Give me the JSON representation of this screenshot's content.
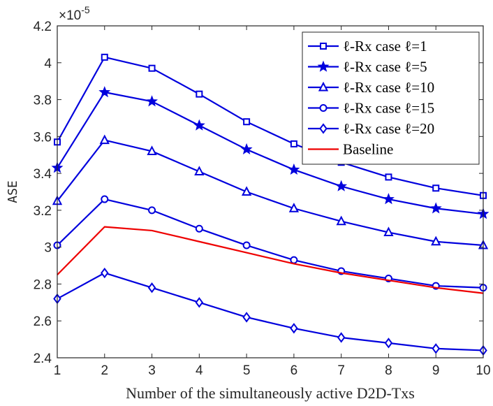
{
  "chart_data": {
    "type": "line",
    "xlabel": "Number of the simultaneously active D2D-Txs",
    "ylabel": "ASE",
    "y_multiplier": "×10",
    "y_multiplier_exp": "-5",
    "xlim": [
      1,
      10
    ],
    "ylim": [
      2.4,
      4.2
    ],
    "x": [
      1,
      2,
      3,
      4,
      5,
      6,
      7,
      8,
      9,
      10
    ],
    "x_ticks": [
      "1",
      "2",
      "3",
      "4",
      "5",
      "6",
      "7",
      "8",
      "9",
      "10"
    ],
    "y_ticks": [
      "2.4",
      "2.6",
      "2.8",
      "3",
      "3.2",
      "3.4",
      "3.6",
      "3.8",
      "4",
      "4.2"
    ],
    "grid": false,
    "legend_position": "top-right",
    "series": [
      {
        "name": "ℓ-Rx case ℓ=1",
        "color": "#0000dd",
        "marker": "square",
        "values": [
          3.57,
          4.03,
          3.97,
          3.83,
          3.68,
          3.56,
          3.46,
          3.38,
          3.32,
          3.28
        ]
      },
      {
        "name": "ℓ-Rx case ℓ=5",
        "color": "#0000dd",
        "marker": "star",
        "values": [
          3.43,
          3.84,
          3.79,
          3.66,
          3.53,
          3.42,
          3.33,
          3.26,
          3.21,
          3.18
        ]
      },
      {
        "name": "ℓ-Rx case ℓ=10",
        "color": "#0000dd",
        "marker": "triangle",
        "values": [
          3.25,
          3.58,
          3.52,
          3.41,
          3.3,
          3.21,
          3.14,
          3.08,
          3.03,
          3.01
        ]
      },
      {
        "name": "ℓ-Rx case ℓ=15",
        "color": "#0000dd",
        "marker": "circle",
        "values": [
          3.01,
          3.26,
          3.2,
          3.1,
          3.01,
          2.93,
          2.87,
          2.83,
          2.79,
          2.78
        ]
      },
      {
        "name": "ℓ-Rx case ℓ=20",
        "color": "#0000dd",
        "marker": "diamond",
        "values": [
          2.72,
          2.86,
          2.78,
          2.7,
          2.62,
          2.56,
          2.51,
          2.48,
          2.45,
          2.44
        ]
      },
      {
        "name": "Baseline",
        "color": "#ee0000",
        "marker": "none",
        "values": [
          2.85,
          3.11,
          3.09,
          3.03,
          2.97,
          2.91,
          2.86,
          2.82,
          2.78,
          2.75
        ]
      }
    ]
  }
}
